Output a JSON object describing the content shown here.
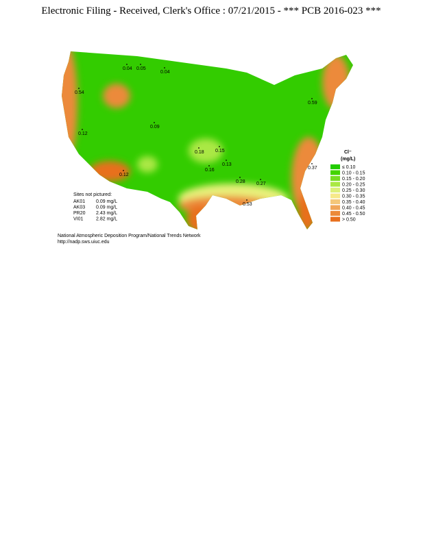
{
  "header": {
    "title": "Electronic Filing - Received, Clerk's Office : 07/21/2015 - *** PCB 2016-023 ***"
  },
  "legend": {
    "title": "Cl⁻",
    "unit": "(mg/L)",
    "items": [
      {
        "label": "≤ 0.10",
        "color": "#22cc00"
      },
      {
        "label": "0.10 - 0.15",
        "color": "#44d400"
      },
      {
        "label": "0.15 - 0.20",
        "color": "#77dd22"
      },
      {
        "label": "0.20 - 0.25",
        "color": "#aae844"
      },
      {
        "label": "0.25 - 0.30",
        "color": "#ddf07a"
      },
      {
        "label": "0.30 - 0.35",
        "color": "#f6e98a"
      },
      {
        "label": "0.35 - 0.40",
        "color": "#f4c77a"
      },
      {
        "label": "0.40 - 0.45",
        "color": "#f0a65a"
      },
      {
        "label": "0.45 - 0.50",
        "color": "#ec8a3a"
      },
      {
        "label": "> 0.50",
        "color": "#e8701e"
      }
    ]
  },
  "sites_not_pictured": {
    "title": "Sites not pictured:",
    "rows": [
      [
        "AK01",
        "0.09 mg/L"
      ],
      [
        "AK03",
        "0.09 mg/L"
      ],
      [
        "PR20",
        "2.43 mg/L"
      ],
      [
        "VI01",
        "2.82 mg/L"
      ]
    ]
  },
  "stations": [
    "0.04",
    "0.05",
    "0.04",
    "0.15",
    "0.18",
    "0.13",
    "0.16",
    "0.09",
    "0.12",
    "0.28",
    "0.27",
    "0.59",
    "0.54",
    "0.37",
    "0.12",
    "0.53"
  ],
  "credits": {
    "line1": "National Atmospheric Deposition Program/National Trends Network",
    "line2": "http://nadp.sws.uiuc.edu"
  }
}
